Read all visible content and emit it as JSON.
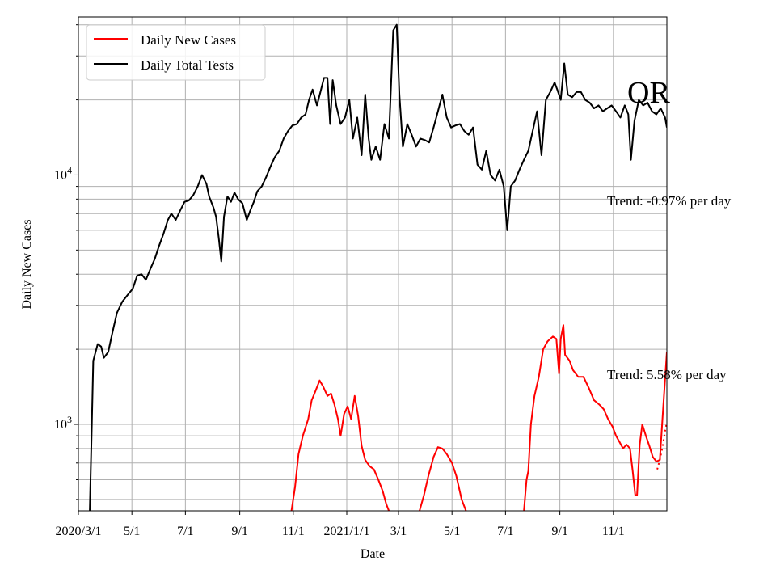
{
  "chart_data": {
    "type": "line",
    "xlabel": "Date",
    "ylabel": "Daily New Cases",
    "yscale": "log",
    "x_range": [
      "2020-03-01",
      "2022-01-01"
    ],
    "ylim": [
      450,
      43000
    ],
    "grid": true,
    "legend_position": "top-left",
    "x_ticks": [
      {
        "date": "2020-03-01",
        "label": "2020/3/1"
      },
      {
        "date": "2020-05-01",
        "label": "5/1"
      },
      {
        "date": "2020-07-01",
        "label": "7/1"
      },
      {
        "date": "2020-09-01",
        "label": "9/1"
      },
      {
        "date": "2020-11-01",
        "label": "11/1"
      },
      {
        "date": "2021-01-01",
        "label": "2021/1/1"
      },
      {
        "date": "2021-03-01",
        "label": "3/1"
      },
      {
        "date": "2021-05-01",
        "label": "5/1"
      },
      {
        "date": "2021-07-01",
        "label": "7/1"
      },
      {
        "date": "2021-09-01",
        "label": "9/1"
      },
      {
        "date": "2021-11-01",
        "label": "11/1"
      }
    ],
    "y_ticks": [
      {
        "value": 1000,
        "base": "10",
        "exp": "3"
      },
      {
        "value": 10000,
        "base": "10",
        "exp": "4"
      }
    ],
    "annotation_region": "OR",
    "annotations": {
      "tests_trend": "Trend: -0.97% per day",
      "cases_trend": "Trend: 5.58% per day"
    },
    "series": [
      {
        "name": "Daily New Cases",
        "color": "#ff0000",
        "points": [
          [
            "2020-10-30",
            450
          ],
          [
            "2020-11-03",
            560
          ],
          [
            "2020-11-07",
            760
          ],
          [
            "2020-11-12",
            900
          ],
          [
            "2020-11-18",
            1050
          ],
          [
            "2020-11-22",
            1250
          ],
          [
            "2020-11-26",
            1350
          ],
          [
            "2020-12-01",
            1500
          ],
          [
            "2020-12-05",
            1420
          ],
          [
            "2020-12-10",
            1300
          ],
          [
            "2020-12-14",
            1330
          ],
          [
            "2020-12-18",
            1200
          ],
          [
            "2020-12-22",
            1050
          ],
          [
            "2020-12-25",
            900
          ],
          [
            "2020-12-29",
            1100
          ],
          [
            "2021-01-02",
            1180
          ],
          [
            "2021-01-06",
            1050
          ],
          [
            "2021-01-10",
            1300
          ],
          [
            "2021-01-14",
            1080
          ],
          [
            "2021-01-18",
            820
          ],
          [
            "2021-01-22",
            720
          ],
          [
            "2021-01-27",
            680
          ],
          [
            "2021-02-01",
            660
          ],
          [
            "2021-02-06",
            600
          ],
          [
            "2021-02-11",
            540
          ],
          [
            "2021-02-15",
            480
          ],
          [
            "2021-02-18",
            450
          ],
          null,
          [
            "2021-03-25",
            450
          ],
          [
            "2021-03-30",
            520
          ],
          [
            "2021-04-04",
            620
          ],
          [
            "2021-04-10",
            740
          ],
          [
            "2021-04-15",
            810
          ],
          [
            "2021-04-20",
            800
          ],
          [
            "2021-04-25",
            760
          ],
          [
            "2021-05-01",
            700
          ],
          [
            "2021-05-06",
            620
          ],
          [
            "2021-05-12",
            500
          ],
          [
            "2021-05-17",
            450
          ],
          null,
          [
            "2021-07-22",
            450
          ],
          [
            "2021-07-25",
            600
          ],
          [
            "2021-07-27",
            650
          ],
          [
            "2021-07-30",
            1000
          ],
          [
            "2021-08-03",
            1300
          ],
          [
            "2021-08-08",
            1550
          ],
          [
            "2021-08-13",
            2000
          ],
          [
            "2021-08-18",
            2150
          ],
          [
            "2021-08-24",
            2250
          ],
          [
            "2021-08-28",
            2200
          ],
          [
            "2021-08-31",
            1600
          ],
          [
            "2021-09-02",
            2200
          ],
          [
            "2021-09-05",
            2500
          ],
          [
            "2021-09-07",
            1900
          ],
          [
            "2021-09-12",
            1800
          ],
          [
            "2021-09-16",
            1650
          ],
          [
            "2021-09-22",
            1550
          ],
          [
            "2021-09-28",
            1550
          ],
          [
            "2021-10-04",
            1400
          ],
          [
            "2021-10-10",
            1250
          ],
          [
            "2021-10-16",
            1200
          ],
          [
            "2021-10-21",
            1150
          ],
          [
            "2021-10-26",
            1050
          ],
          [
            "2021-10-31",
            980
          ],
          [
            "2021-11-04",
            900
          ],
          [
            "2021-11-08",
            850
          ],
          [
            "2021-11-12",
            800
          ],
          [
            "2021-11-16",
            830
          ],
          [
            "2021-11-20",
            800
          ],
          [
            "2021-11-23",
            650
          ],
          [
            "2021-11-26",
            520
          ],
          [
            "2021-11-28",
            520
          ],
          [
            "2021-12-01",
            830
          ],
          [
            "2021-12-04",
            1000
          ],
          [
            "2021-12-08",
            900
          ],
          [
            "2021-12-12",
            820
          ],
          [
            "2021-12-16",
            740
          ],
          [
            "2021-12-20",
            710
          ],
          [
            "2021-12-24",
            720
          ],
          [
            "2021-12-28",
            1200
          ],
          [
            "2022-01-01",
            1950
          ]
        ]
      },
      {
        "name": "Daily Total Tests",
        "color": "#000000",
        "points": [
          [
            "2020-03-14",
            450
          ],
          [
            "2020-03-16",
            900
          ],
          [
            "2020-03-18",
            1800
          ],
          [
            "2020-03-23",
            2100
          ],
          [
            "2020-03-27",
            2050
          ],
          [
            "2020-03-30",
            1850
          ],
          [
            "2020-04-04",
            1950
          ],
          [
            "2020-04-09",
            2350
          ],
          [
            "2020-04-14",
            2800
          ],
          [
            "2020-04-20",
            3100
          ],
          [
            "2020-04-26",
            3300
          ],
          [
            "2020-05-02",
            3500
          ],
          [
            "2020-05-07",
            3950
          ],
          [
            "2020-05-12",
            4000
          ],
          [
            "2020-05-17",
            3800
          ],
          [
            "2020-05-22",
            4200
          ],
          [
            "2020-05-27",
            4600
          ],
          [
            "2020-06-01",
            5200
          ],
          [
            "2020-06-06",
            5800
          ],
          [
            "2020-06-11",
            6600
          ],
          [
            "2020-06-15",
            7000
          ],
          [
            "2020-06-20",
            6600
          ],
          [
            "2020-06-25",
            7200
          ],
          [
            "2020-06-30",
            7800
          ],
          [
            "2020-07-05",
            7900
          ],
          [
            "2020-07-10",
            8300
          ],
          [
            "2020-07-15",
            9000
          ],
          [
            "2020-07-20",
            10000
          ],
          [
            "2020-07-25",
            9200
          ],
          [
            "2020-07-28",
            8200
          ],
          [
            "2020-08-02",
            7400
          ],
          [
            "2020-08-05",
            6800
          ],
          [
            "2020-08-08",
            5600
          ],
          [
            "2020-08-11",
            4500
          ],
          [
            "2020-08-14",
            6800
          ],
          [
            "2020-08-18",
            8200
          ],
          [
            "2020-08-22",
            7800
          ],
          [
            "2020-08-26",
            8500
          ],
          [
            "2020-08-30",
            8000
          ],
          [
            "2020-09-04",
            7700
          ],
          [
            "2020-09-09",
            6600
          ],
          [
            "2020-09-13",
            7200
          ],
          [
            "2020-09-17",
            7800
          ],
          [
            "2020-09-21",
            8600
          ],
          [
            "2020-09-26",
            9000
          ],
          [
            "2020-10-01",
            9800
          ],
          [
            "2020-10-06",
            10800
          ],
          [
            "2020-10-11",
            11800
          ],
          [
            "2020-10-16",
            12500
          ],
          [
            "2020-10-21",
            14000
          ],
          [
            "2020-10-26",
            15000
          ],
          [
            "2020-10-31",
            15800
          ],
          [
            "2020-11-05",
            16000
          ],
          [
            "2020-11-10",
            17000
          ],
          [
            "2020-11-15",
            17500
          ],
          [
            "2020-11-19",
            20000
          ],
          [
            "2020-11-23",
            22000
          ],
          [
            "2020-11-28",
            19000
          ],
          [
            "2020-12-02",
            21500
          ],
          [
            "2020-12-06",
            24500
          ],
          [
            "2020-12-10",
            24500
          ],
          [
            "2020-12-13",
            16000
          ],
          [
            "2020-12-16",
            24000
          ],
          [
            "2020-12-20",
            19000
          ],
          [
            "2020-12-25",
            16000
          ],
          [
            "2020-12-30",
            17000
          ],
          [
            "2021-01-04",
            20000
          ],
          [
            "2021-01-08",
            14000
          ],
          [
            "2021-01-13",
            17000
          ],
          [
            "2021-01-18",
            12000
          ],
          [
            "2021-01-22",
            21000
          ],
          [
            "2021-01-26",
            14000
          ],
          [
            "2021-01-29",
            11500
          ],
          [
            "2021-02-03",
            13000
          ],
          [
            "2021-02-08",
            11500
          ],
          [
            "2021-02-13",
            16000
          ],
          [
            "2021-02-18",
            14000
          ],
          [
            "2021-02-23",
            38000
          ],
          [
            "2021-02-27",
            40000
          ],
          [
            "2021-03-02",
            21000
          ],
          [
            "2021-03-06",
            13000
          ],
          [
            "2021-03-11",
            16000
          ],
          [
            "2021-03-16",
            14500
          ],
          [
            "2021-03-21",
            13000
          ],
          [
            "2021-03-26",
            14000
          ],
          [
            "2021-03-31",
            13800
          ],
          [
            "2021-04-05",
            13500
          ],
          [
            "2021-04-10",
            15500
          ],
          [
            "2021-04-15",
            18000
          ],
          [
            "2021-04-20",
            21000
          ],
          [
            "2021-04-25",
            17000
          ],
          [
            "2021-04-30",
            15500
          ],
          [
            "2021-05-05",
            15800
          ],
          [
            "2021-05-10",
            16000
          ],
          [
            "2021-05-15",
            15000
          ],
          [
            "2021-05-20",
            14500
          ],
          [
            "2021-05-25",
            15500
          ],
          [
            "2021-05-30",
            11000
          ],
          [
            "2021-06-04",
            10500
          ],
          [
            "2021-06-09",
            12500
          ],
          [
            "2021-06-14",
            10000
          ],
          [
            "2021-06-19",
            9500
          ],
          [
            "2021-06-24",
            10500
          ],
          [
            "2021-06-29",
            9000
          ],
          [
            "2021-07-03",
            6000
          ],
          [
            "2021-07-07",
            9000
          ],
          [
            "2021-07-12",
            9500
          ],
          [
            "2021-07-17",
            10500
          ],
          [
            "2021-07-22",
            11500
          ],
          [
            "2021-07-27",
            12500
          ],
          [
            "2021-08-01",
            15000
          ],
          [
            "2021-08-06",
            18000
          ],
          [
            "2021-08-11",
            12000
          ],
          [
            "2021-08-16",
            20000
          ],
          [
            "2021-08-21",
            21500
          ],
          [
            "2021-08-26",
            23500
          ],
          [
            "2021-08-29",
            22000
          ],
          [
            "2021-09-02",
            20000
          ],
          [
            "2021-09-06",
            28000
          ],
          [
            "2021-09-10",
            21000
          ],
          [
            "2021-09-15",
            20500
          ],
          [
            "2021-09-20",
            21500
          ],
          [
            "2021-09-25",
            21500
          ],
          [
            "2021-09-30",
            20000
          ],
          [
            "2021-10-05",
            19500
          ],
          [
            "2021-10-10",
            18500
          ],
          [
            "2021-10-15",
            19000
          ],
          [
            "2021-10-20",
            18000
          ],
          [
            "2021-10-25",
            18500
          ],
          [
            "2021-10-30",
            19000
          ],
          [
            "2021-11-04",
            18000
          ],
          [
            "2021-11-09",
            17000
          ],
          [
            "2021-11-14",
            19000
          ],
          [
            "2021-11-18",
            17500
          ],
          [
            "2021-11-21",
            11500
          ],
          [
            "2021-11-25",
            16500
          ],
          [
            "2021-11-30",
            20000
          ],
          [
            "2021-12-05",
            19000
          ],
          [
            "2021-12-10",
            19500
          ],
          [
            "2021-12-15",
            18000
          ],
          [
            "2021-12-20",
            17500
          ],
          [
            "2021-12-25",
            18500
          ],
          [
            "2021-12-30",
            17000
          ],
          [
            "2022-01-01",
            15500
          ]
        ]
      },
      {
        "name": "",
        "color": "#ff0000",
        "dotted": true,
        "points": [
          [
            "2021-12-21",
            660
          ],
          [
            "2021-12-24",
            720
          ],
          [
            "2021-12-27",
            810
          ],
          [
            "2021-12-30",
            940
          ],
          [
            "2022-01-01",
            1020
          ]
        ]
      }
    ]
  }
}
